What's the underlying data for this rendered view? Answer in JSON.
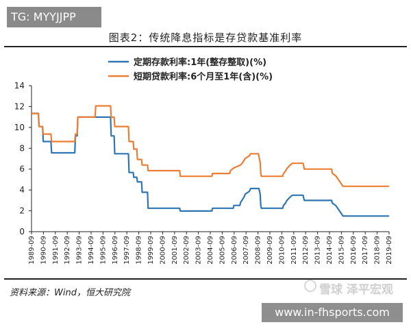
{
  "header": {
    "tag": "TG: MYYJJPP"
  },
  "footer": {
    "source": "资料来源：Wind，恒大研究院",
    "watermark": "雪球 泽平宏观",
    "url": "www.in-fhsports.com"
  },
  "colors": {
    "deposit": "#2e75b6",
    "loan": "#ed7d31"
  },
  "chart_data": {
    "type": "line",
    "title": "图表2：传统降息指标是存贷款基准利率",
    "xlabel": "",
    "ylabel": "",
    "ylim": [
      0,
      14
    ],
    "yticks": [
      "0",
      "2",
      "4",
      "6",
      "8",
      "10",
      "12",
      "14"
    ],
    "xlim": [
      1989.667,
      2019.667
    ],
    "xticks": [
      "1989-09",
      "1990-09",
      "1991-09",
      "1992-09",
      "1993-09",
      "1994-09",
      "1995-09",
      "1996-09",
      "1997-09",
      "1998-09",
      "1999-09",
      "2000-09",
      "2001-09",
      "2002-09",
      "2003-09",
      "2004-09",
      "2005-09",
      "2006-09",
      "2007-09",
      "2008-09",
      "2009-09",
      "2010-09",
      "2011-09",
      "2012-09",
      "2013-09",
      "2014-09",
      "2015-09",
      "2016-09",
      "2017-09",
      "2018-09",
      "2019-09"
    ],
    "legend_position": "top-left",
    "series": [
      {
        "name": "定期存款利率:1年(整存整取)(%)",
        "color": "#2e75b6",
        "points": [
          [
            1989.67,
            11.34
          ],
          [
            1990.25,
            11.34
          ],
          [
            1990.3,
            10.08
          ],
          [
            1990.6,
            10.08
          ],
          [
            1990.65,
            8.64
          ],
          [
            1991.3,
            8.64
          ],
          [
            1991.35,
            7.56
          ],
          [
            1993.3,
            7.56
          ],
          [
            1993.35,
            9.18
          ],
          [
            1993.5,
            9.18
          ],
          [
            1993.55,
            10.98
          ],
          [
            1996.3,
            10.98
          ],
          [
            1996.35,
            9.18
          ],
          [
            1996.6,
            9.18
          ],
          [
            1996.65,
            7.47
          ],
          [
            1997.8,
            7.47
          ],
          [
            1997.85,
            5.67
          ],
          [
            1998.2,
            5.67
          ],
          [
            1998.25,
            5.22
          ],
          [
            1998.5,
            5.22
          ],
          [
            1998.55,
            4.77
          ],
          [
            1998.9,
            4.77
          ],
          [
            1998.95,
            3.78
          ],
          [
            1999.4,
            3.78
          ],
          [
            1999.45,
            2.25
          ],
          [
            2002.1,
            2.25
          ],
          [
            2002.15,
            1.98
          ],
          [
            2004.8,
            1.98
          ],
          [
            2004.85,
            2.25
          ],
          [
            2006.6,
            2.25
          ],
          [
            2006.65,
            2.52
          ],
          [
            2007.15,
            2.52
          ],
          [
            2007.2,
            2.79
          ],
          [
            2007.35,
            3.06
          ],
          [
            2007.5,
            3.33
          ],
          [
            2007.6,
            3.6
          ],
          [
            2007.95,
            3.87
          ],
          [
            2008.05,
            4.14
          ],
          [
            2008.75,
            4.14
          ],
          [
            2008.8,
            3.87
          ],
          [
            2008.85,
            3.6
          ],
          [
            2008.9,
            2.52
          ],
          [
            2008.95,
            2.25
          ],
          [
            2010.75,
            2.25
          ],
          [
            2010.8,
            2.5
          ],
          [
            2010.98,
            2.75
          ],
          [
            2011.1,
            3.0
          ],
          [
            2011.3,
            3.25
          ],
          [
            2011.55,
            3.5
          ],
          [
            2012.45,
            3.5
          ],
          [
            2012.5,
            3.25
          ],
          [
            2012.55,
            3.0
          ],
          [
            2014.85,
            3.0
          ],
          [
            2014.9,
            2.75
          ],
          [
            2015.2,
            2.5
          ],
          [
            2015.35,
            2.25
          ],
          [
            2015.5,
            2.0
          ],
          [
            2015.65,
            1.75
          ],
          [
            2015.8,
            1.5
          ],
          [
            2019.67,
            1.5
          ]
        ]
      },
      {
        "name": "短期贷款利率:6个月至1年(含)(%)",
        "color": "#ed7d31",
        "points": [
          [
            1989.67,
            11.34
          ],
          [
            1990.25,
            11.34
          ],
          [
            1990.3,
            10.08
          ],
          [
            1990.6,
            10.08
          ],
          [
            1990.65,
            9.36
          ],
          [
            1991.3,
            9.36
          ],
          [
            1991.35,
            8.64
          ],
          [
            1993.3,
            8.64
          ],
          [
            1993.35,
            9.36
          ],
          [
            1993.5,
            9.36
          ],
          [
            1993.55,
            10.98
          ],
          [
            1995.0,
            10.98
          ],
          [
            1995.05,
            12.06
          ],
          [
            1996.3,
            12.06
          ],
          [
            1996.35,
            10.98
          ],
          [
            1996.6,
            10.98
          ],
          [
            1996.65,
            10.08
          ],
          [
            1997.8,
            10.08
          ],
          [
            1997.85,
            8.64
          ],
          [
            1998.2,
            8.64
          ],
          [
            1998.25,
            7.92
          ],
          [
            1998.5,
            7.92
          ],
          [
            1998.55,
            6.93
          ],
          [
            1998.9,
            6.93
          ],
          [
            1998.95,
            6.39
          ],
          [
            1999.4,
            6.39
          ],
          [
            1999.45,
            5.85
          ],
          [
            2002.1,
            5.85
          ],
          [
            2002.15,
            5.31
          ],
          [
            2004.8,
            5.31
          ],
          [
            2004.85,
            5.58
          ],
          [
            2006.3,
            5.58
          ],
          [
            2006.35,
            5.85
          ],
          [
            2006.65,
            6.12
          ],
          [
            2007.2,
            6.39
          ],
          [
            2007.35,
            6.57
          ],
          [
            2007.5,
            6.84
          ],
          [
            2007.6,
            7.02
          ],
          [
            2007.95,
            7.29
          ],
          [
            2008.05,
            7.47
          ],
          [
            2008.7,
            7.47
          ],
          [
            2008.75,
            7.2
          ],
          [
            2008.8,
            6.93
          ],
          [
            2008.85,
            6.66
          ],
          [
            2008.9,
            5.58
          ],
          [
            2008.95,
            5.31
          ],
          [
            2010.75,
            5.31
          ],
          [
            2010.8,
            5.56
          ],
          [
            2010.98,
            5.81
          ],
          [
            2011.1,
            6.06
          ],
          [
            2011.3,
            6.31
          ],
          [
            2011.55,
            6.56
          ],
          [
            2012.45,
            6.56
          ],
          [
            2012.5,
            6.31
          ],
          [
            2012.55,
            6.0
          ],
          [
            2014.85,
            6.0
          ],
          [
            2014.9,
            5.6
          ],
          [
            2015.2,
            5.35
          ],
          [
            2015.35,
            5.1
          ],
          [
            2015.5,
            4.85
          ],
          [
            2015.65,
            4.6
          ],
          [
            2015.8,
            4.35
          ],
          [
            2019.67,
            4.35
          ]
        ]
      }
    ]
  }
}
